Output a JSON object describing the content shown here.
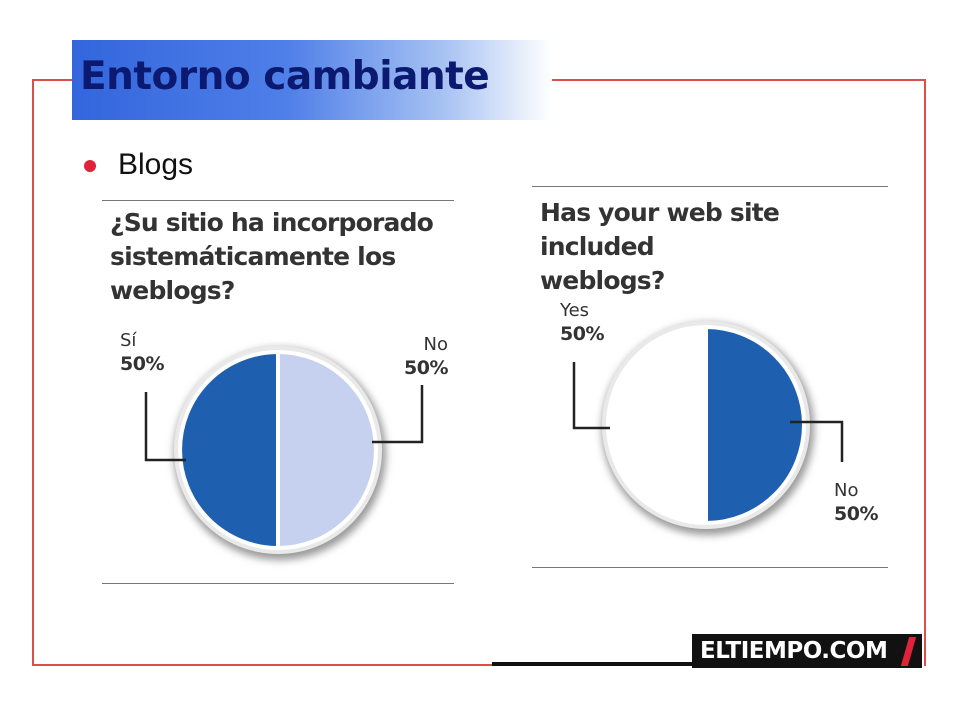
{
  "slide": {
    "title": "Entorno cambiante",
    "bullet": "Blogs"
  },
  "chart_data": [
    {
      "type": "pie",
      "title": "¿Su sitio ha incorporado sistemáticamente los weblogs?",
      "title_lines": [
        "¿Su sitio ha incorporado",
        "sistemáticamente los",
        "weblogs?"
      ],
      "slices": [
        {
          "label": "Sí",
          "value": 50,
          "display": "50%",
          "color": "#1f5fb0"
        },
        {
          "label": "No",
          "value": 50,
          "display": "50%",
          "color": "#c6d1ef"
        }
      ]
    },
    {
      "type": "pie",
      "title": "Has your web site included weblogs?",
      "title_lines": [
        "Has your web site included",
        "weblogs?"
      ],
      "slices": [
        {
          "label": "Yes",
          "value": 50,
          "display": "50%",
          "color": "#ffffff"
        },
        {
          "label": "No",
          "value": 50,
          "display": "50%",
          "color": "#1f5fb0"
        }
      ]
    }
  ],
  "logo": {
    "text": "ELTIEMPO.COM"
  }
}
